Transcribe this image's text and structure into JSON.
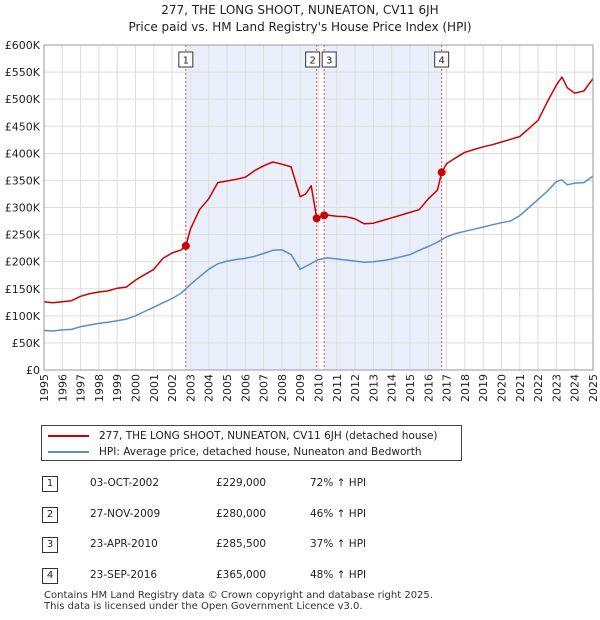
{
  "chart_data": {
    "type": "line",
    "title": "277, THE LONG SHOOT, NUNEATON, CV11 6JH",
    "subtitle": "Price paid vs. HM Land Registry's House Price Index (HPI)",
    "xlim": [
      1995,
      2025
    ],
    "ylim": [
      0,
      600000
    ],
    "x_ticks": [
      "1995",
      "1996",
      "1997",
      "1998",
      "1999",
      "2000",
      "2001",
      "2002",
      "2003",
      "2004",
      "2005",
      "2006",
      "2007",
      "2008",
      "2009",
      "2010",
      "2011",
      "2012",
      "2013",
      "2014",
      "2015",
      "2016",
      "2017",
      "2018",
      "2019",
      "2020",
      "2021",
      "2022",
      "2023",
      "2024",
      "2025"
    ],
    "y_ticks": [
      {
        "value": 0,
        "label": "£0"
      },
      {
        "value": 50000,
        "label": "£50K"
      },
      {
        "value": 100000,
        "label": "£100K"
      },
      {
        "value": 150000,
        "label": "£150K"
      },
      {
        "value": 200000,
        "label": "£200K"
      },
      {
        "value": 250000,
        "label": "£250K"
      },
      {
        "value": 300000,
        "label": "£300K"
      },
      {
        "value": 350000,
        "label": "£350K"
      },
      {
        "value": 400000,
        "label": "£400K"
      },
      {
        "value": 450000,
        "label": "£450K"
      },
      {
        "value": 500000,
        "label": "£500K"
      },
      {
        "value": 550000,
        "label": "£550K"
      },
      {
        "value": 600000,
        "label": "£600K"
      }
    ],
    "shaded_ranges": [
      [
        2002.75,
        2009.9
      ],
      [
        2010.31,
        2016.73
      ]
    ],
    "series": [
      {
        "name": "277, THE LONG SHOOT, NUNEATON, CV11 6JH (detached house)",
        "color": "#cc0000",
        "x": [
          1995.0,
          1995.5,
          1996.0,
          1996.5,
          1997.0,
          1997.5,
          1998.0,
          1998.5,
          1999.0,
          1999.5,
          2000.0,
          2000.5,
          2001.0,
          2001.5,
          2002.0,
          2002.5,
          2002.75,
          2003.0,
          2003.5,
          2004.0,
          2004.5,
          2005.0,
          2005.5,
          2006.0,
          2006.5,
          2007.0,
          2007.5,
          2008.0,
          2008.5,
          2009.0,
          2009.3,
          2009.6,
          2009.9,
          2010.0,
          2010.31,
          2010.5,
          2011.0,
          2011.5,
          2012.0,
          2012.5,
          2013.0,
          2013.5,
          2014.0,
          2014.5,
          2015.0,
          2015.5,
          2016.0,
          2016.5,
          2016.73,
          2017.0,
          2017.5,
          2018.0,
          2018.5,
          2019.0,
          2019.5,
          2020.0,
          2020.5,
          2021.0,
          2021.5,
          2022.0,
          2022.5,
          2023.0,
          2023.3,
          2023.6,
          2024.0,
          2024.5,
          2025.0
        ],
        "values": [
          126000,
          124000,
          126000,
          128000,
          136000,
          141000,
          144000,
          146000,
          151000,
          153000,
          166000,
          176000,
          186000,
          206000,
          216000,
          222000,
          229000,
          260000,
          296000,
          316000,
          346000,
          349000,
          352000,
          356000,
          368000,
          377000,
          384000,
          380000,
          375000,
          320000,
          325000,
          340000,
          280000,
          282000,
          285500,
          286000,
          284000,
          283000,
          279000,
          270000,
          271000,
          276000,
          281000,
          286000,
          291000,
          296000,
          316000,
          332000,
          365000,
          381000,
          392000,
          402000,
          407000,
          412000,
          416000,
          421000,
          426000,
          431000,
          446000,
          461000,
          495000,
          526000,
          541000,
          521000,
          511000,
          515000,
          538000
        ]
      },
      {
        "name": "HPI: Average price, detached house, Nuneaton and Bedworth",
        "color": "#5b8ec8",
        "x": [
          1995.0,
          1995.5,
          1996.0,
          1996.5,
          1997.0,
          1997.5,
          1998.0,
          1998.5,
          1999.0,
          1999.5,
          2000.0,
          2000.5,
          2001.0,
          2001.5,
          2002.0,
          2002.5,
          2003.0,
          2003.5,
          2004.0,
          2004.5,
          2005.0,
          2005.5,
          2006.0,
          2006.5,
          2007.0,
          2007.5,
          2008.0,
          2008.5,
          2009.0,
          2009.5,
          2010.0,
          2010.5,
          2011.0,
          2011.5,
          2012.0,
          2012.5,
          2013.0,
          2013.5,
          2014.0,
          2014.5,
          2015.0,
          2015.5,
          2016.0,
          2016.5,
          2017.0,
          2017.5,
          2018.0,
          2018.5,
          2019.0,
          2019.5,
          2020.0,
          2020.5,
          2021.0,
          2021.5,
          2022.0,
          2022.5,
          2023.0,
          2023.3,
          2023.6,
          2024.0,
          2024.5,
          2025.0
        ],
        "values": [
          73000,
          72000,
          74000,
          75000,
          80000,
          83000,
          86000,
          88000,
          91000,
          94000,
          100000,
          108000,
          116000,
          124000,
          132000,
          142000,
          158000,
          172000,
          186000,
          196000,
          201000,
          204000,
          206000,
          210000,
          215000,
          221000,
          222000,
          213000,
          186000,
          195000,
          204000,
          207000,
          205000,
          203000,
          201000,
          199000,
          200000,
          202000,
          205000,
          209000,
          213000,
          221000,
          228000,
          236000,
          246000,
          252000,
          256000,
          260000,
          264000,
          268000,
          272000,
          275000,
          285000,
          300000,
          315000,
          330000,
          348000,
          351000,
          342000,
          345000,
          346000,
          358000
        ]
      }
    ],
    "markers": [
      {
        "label": "1",
        "x": 2002.75,
        "value": 229000
      },
      {
        "label": "2",
        "x": 2009.9,
        "value": 280000
      },
      {
        "label": "3",
        "x": 2010.31,
        "value": 285500
      },
      {
        "label": "4",
        "x": 2016.73,
        "value": 365000
      }
    ]
  },
  "legend": {
    "property_label": "277, THE LONG SHOOT, NUNEATON, CV11 6JH (detached house)",
    "hpi_label": "HPI: Average price, detached house, Nuneaton and Bedworth",
    "property_color": "#cc0000",
    "hpi_color": "#5b8ec8"
  },
  "transactions": [
    {
      "num": "1",
      "date": "03-OCT-2002",
      "price": "£229,000",
      "hpi": "72% ↑ HPI"
    },
    {
      "num": "2",
      "date": "27-NOV-2009",
      "price": "£280,000",
      "hpi": "46% ↑ HPI"
    },
    {
      "num": "3",
      "date": "23-APR-2010",
      "price": "£285,500",
      "hpi": "37% ↑ HPI"
    },
    {
      "num": "4",
      "date": "23-SEP-2016",
      "price": "£365,000",
      "hpi": "48% ↑ HPI"
    }
  ],
  "footer": {
    "line1": "Contains HM Land Registry data © Crown copyright and database right 2025.",
    "line2": "This data is licensed under the Open Government Licence v3.0."
  }
}
